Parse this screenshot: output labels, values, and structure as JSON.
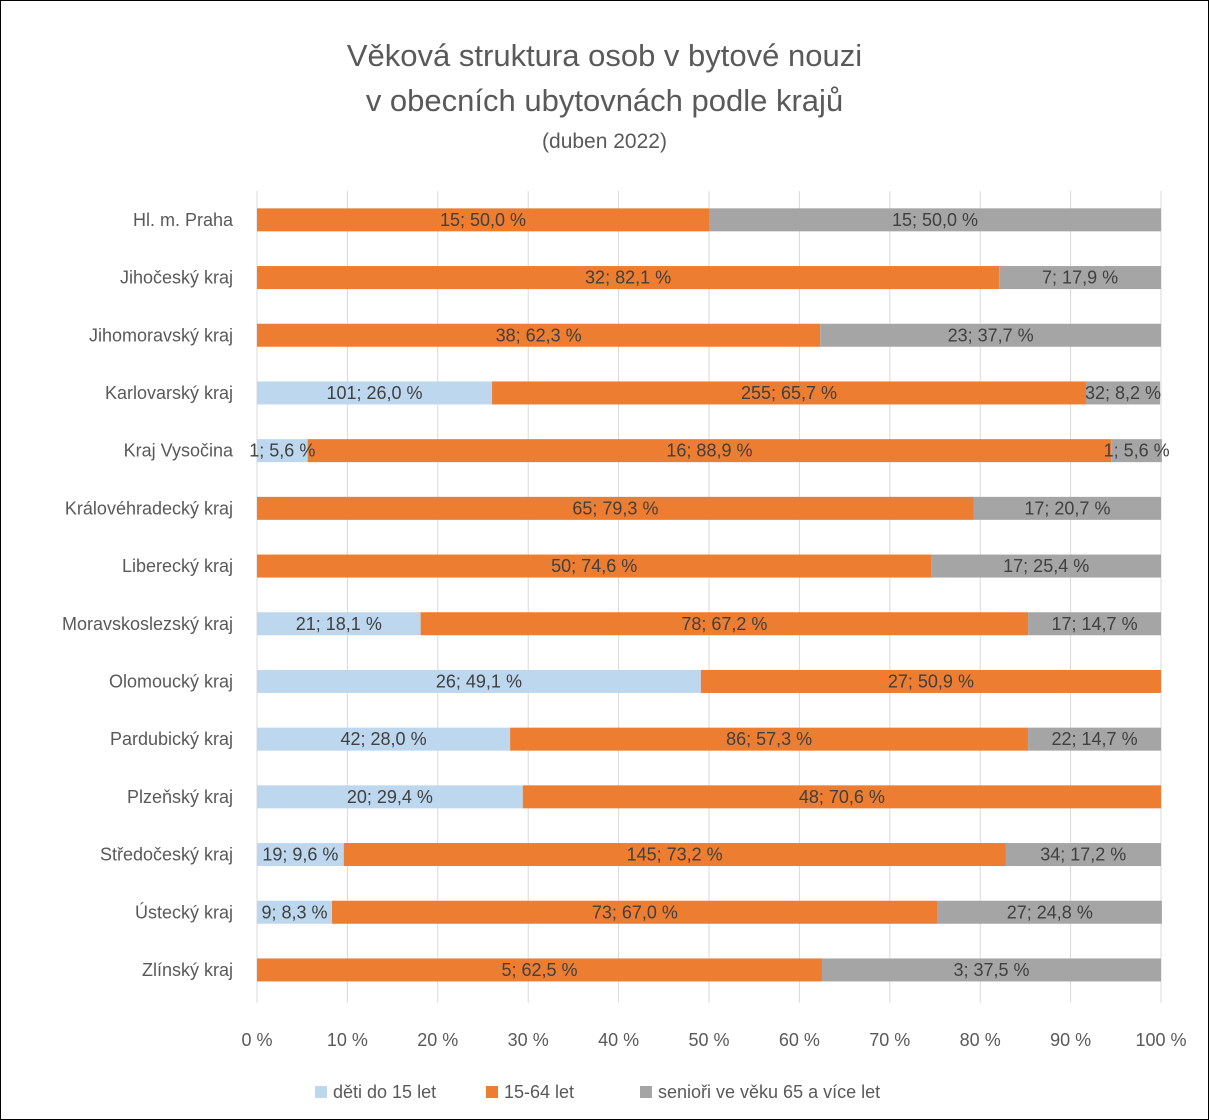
{
  "title_lines": [
    "Věková struktura osob v bytové nouzi",
    "v obecních ubytovnách podle krajů",
    "(duben 2022)"
  ],
  "colors": {
    "children": "#BDD7EE",
    "adults": "#ED7D31",
    "seniors": "#A5A5A5",
    "grid": "#D9D9D9",
    "text": "#595959"
  },
  "chart_data": {
    "type": "bar",
    "orientation": "horizontal",
    "stacked": "percent",
    "title": "Věková struktura osob v bytové nouzi v obecních ubytovnách podle krajů (duben 2022)",
    "xlim": [
      0,
      100
    ],
    "xticks": [
      "0 %",
      "10 %",
      "20 %",
      "30 %",
      "40 %",
      "50 %",
      "60 %",
      "70 %",
      "80 %",
      "90 %",
      "100 %"
    ],
    "grid": true,
    "legend_position": "bottom",
    "categories": [
      "Hl. m. Praha",
      "Jihočeský kraj",
      "Jihomoravský kraj",
      "Karlovarský kraj",
      "Kraj Vysočina",
      "Královéhradecký kraj",
      "Liberecký kraj",
      "Moravskoslezský kraj",
      "Olomoucký kraj",
      "Pardubický kraj",
      "Plzeňský kraj",
      "Středočeský kraj",
      "Ústecký kraj",
      "Zlínský kraj"
    ],
    "series": [
      {
        "name": "děti do 15 let",
        "values": [
          0,
          0,
          0,
          26.0,
          5.6,
          0,
          0,
          18.1,
          49.1,
          28.0,
          29.4,
          9.6,
          8.3,
          0
        ],
        "labels": [
          "",
          "",
          "",
          "101; 26,0 %",
          "1; 5,6 %",
          "",
          "",
          "21; 18,1 %",
          "26; 49,1 %",
          "42; 28,0 %",
          "20; 29,4 %",
          "19; 9,6 %",
          "9; 8,3 %",
          ""
        ]
      },
      {
        "name": "15-64 let",
        "values": [
          50.0,
          82.1,
          62.3,
          65.7,
          88.9,
          79.3,
          74.6,
          67.2,
          50.9,
          57.3,
          70.6,
          73.2,
          67.0,
          62.5
        ],
        "labels": [
          "15; 50,0 %",
          "32; 82,1 %",
          "38; 62,3 %",
          "255; 65,7 %",
          "16; 88,9 %",
          "65; 79,3 %",
          "50; 74,6 %",
          "78; 67,2 %",
          "27; 50,9 %",
          "86; 57,3 %",
          "48; 70,6 %",
          "145; 73,2 %",
          "73; 67,0 %",
          "5; 62,5 %"
        ]
      },
      {
        "name": "senioři ve věku 65 a více let",
        "values": [
          50.0,
          17.9,
          37.7,
          8.2,
          5.6,
          20.7,
          25.4,
          14.7,
          0,
          14.7,
          0,
          17.2,
          24.8,
          37.5
        ],
        "labels": [
          "15; 50,0 %",
          "7; 17,9 %",
          "23; 37,7 %",
          "32; 8,2 %",
          "1; 5,6 %",
          "17; 20,7 %",
          "17; 25,4 %",
          "17; 14,7 %",
          "",
          "22; 14,7 %",
          "",
          "34; 17,2 %",
          "27; 24,8 %",
          "3; 37,5 %"
        ]
      }
    ]
  }
}
